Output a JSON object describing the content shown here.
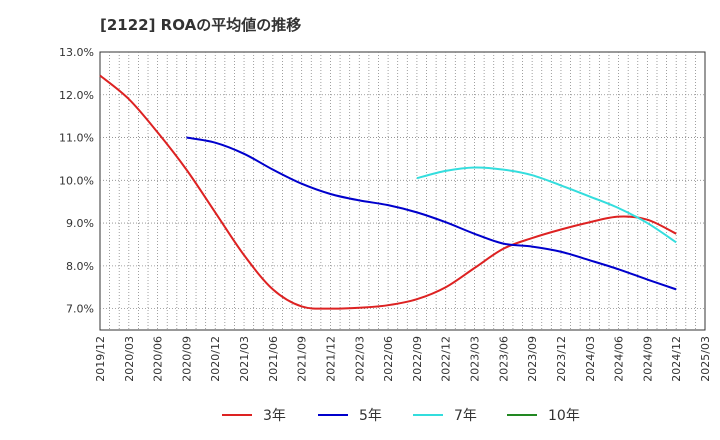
{
  "chart_data": {
    "type": "line",
    "title": "[2122]  ROAの平均値の推移",
    "xlabel": "",
    "ylabel": "",
    "ylim": [
      6.5,
      13.0
    ],
    "grid": true,
    "legend_position": "bottom",
    "x_ticks": [
      "2019/12",
      "2020/03",
      "2020/06",
      "2020/09",
      "2020/12",
      "2021/03",
      "2021/06",
      "2021/09",
      "2021/12",
      "2022/03",
      "2022/06",
      "2022/09",
      "2022/12",
      "2023/03",
      "2023/06",
      "2023/09",
      "2023/12",
      "2024/03",
      "2024/06",
      "2024/09",
      "2024/12",
      "2025/03"
    ],
    "y_ticks": [
      "7.0%",
      "8.0%",
      "9.0%",
      "10.0%",
      "11.0%",
      "12.0%",
      "13.0%"
    ],
    "y_tick_values": [
      7,
      8,
      9,
      10,
      11,
      12,
      13
    ],
    "series": [
      {
        "name": "3年",
        "color": "#dd2222",
        "x": [
          "2019/12",
          "2020/03",
          "2020/06",
          "2020/09",
          "2020/12",
          "2021/03",
          "2021/06",
          "2021/09",
          "2021/12",
          "2022/03",
          "2022/06",
          "2022/09",
          "2022/12",
          "2023/03",
          "2023/06",
          "2023/09",
          "2023/12",
          "2024/03",
          "2024/06",
          "2024/09",
          "2024/12"
        ],
        "values": [
          12.45,
          11.9,
          11.12,
          10.25,
          9.25,
          8.25,
          7.45,
          7.05,
          7.0,
          7.02,
          7.08,
          7.22,
          7.5,
          7.95,
          8.4,
          8.65,
          8.85,
          9.02,
          9.15,
          9.08,
          8.75
        ]
      },
      {
        "name": "5年",
        "color": "#0000cc",
        "x": [
          "2020/09",
          "2020/12",
          "2021/03",
          "2021/06",
          "2021/09",
          "2021/12",
          "2022/03",
          "2022/06",
          "2022/09",
          "2022/12",
          "2023/03",
          "2023/06",
          "2023/09",
          "2023/12",
          "2024/03",
          "2024/06",
          "2024/09",
          "2024/12"
        ],
        "values": [
          11.0,
          10.88,
          10.62,
          10.25,
          9.92,
          9.68,
          9.53,
          9.42,
          9.25,
          9.02,
          8.75,
          8.52,
          8.45,
          8.33,
          8.13,
          7.92,
          7.68,
          7.45
        ]
      },
      {
        "name": "7年",
        "color": "#33dddd",
        "x": [
          "2022/09",
          "2022/12",
          "2023/03",
          "2023/06",
          "2023/09",
          "2023/12",
          "2024/03",
          "2024/06",
          "2024/09",
          "2024/12"
        ],
        "values": [
          10.05,
          10.22,
          10.3,
          10.25,
          10.12,
          9.88,
          9.62,
          9.35,
          9.0,
          8.55
        ]
      },
      {
        "name": "10年",
        "color": "#228822",
        "x": [],
        "values": []
      }
    ]
  }
}
